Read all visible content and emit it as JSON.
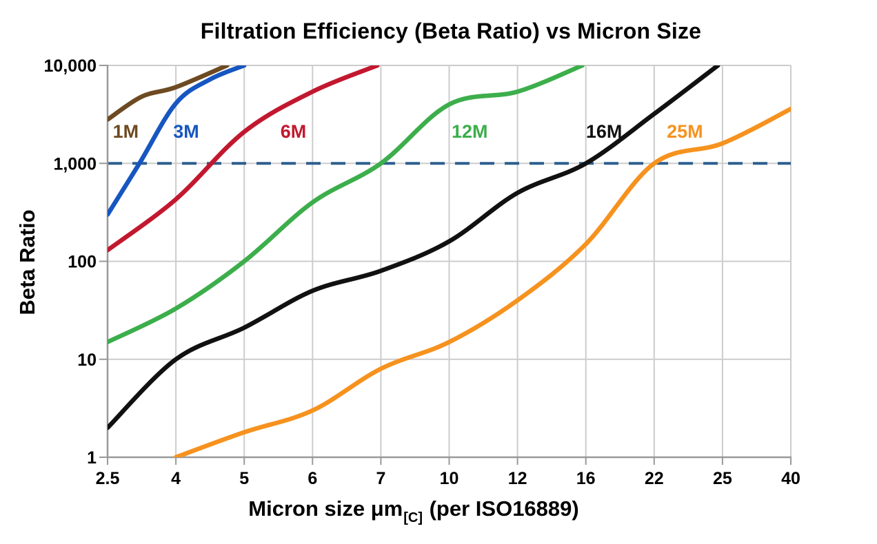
{
  "title": "Filtration Efficiency (Beta Ratio) vs Micron Size",
  "y_axis": {
    "title": "Beta Ratio",
    "tick_labels": [
      "10,000",
      "1,000",
      "100",
      "10",
      "1"
    ]
  },
  "x_axis": {
    "title_prefix": "Micron size μm",
    "title_subscript": "[C]",
    "title_suffix": " (per ISO16889)",
    "tick_labels": [
      "2.5",
      "4",
      "5",
      "6",
      "7",
      "10",
      "12",
      "16",
      "22",
      "25",
      "40"
    ]
  },
  "chart_data": {
    "type": "line",
    "title": "Filtration Efficiency (Beta Ratio) vs Micron Size",
    "xlabel": "Micron size μm[C] (per ISO16889)",
    "ylabel": "Beta Ratio",
    "x_scale": "categorical",
    "y_scale": "log",
    "x_ticks": [
      2.5,
      4,
      5,
      6,
      7,
      10,
      12,
      16,
      22,
      25,
      40
    ],
    "y_ticks": [
      1,
      10,
      100,
      1000,
      10000
    ],
    "ylim": [
      1,
      10000
    ],
    "grid": true,
    "legend_position": "inline-labels",
    "reference_line": {
      "value": 1000,
      "orientation": "horizontal",
      "style": "dashed",
      "color": "#2d5f8e"
    },
    "series": [
      {
        "name": "1M",
        "color": "#6d4a21",
        "label_pos": [
          2.9,
          2150
        ],
        "points": [
          [
            2.5,
            2800
          ],
          [
            3.25,
            4800
          ],
          [
            4,
            6000
          ],
          [
            4.75,
            10000
          ]
        ]
      },
      {
        "name": "3M",
        "color": "#1656c1",
        "label_pos": [
          4.15,
          2150
        ],
        "points": [
          [
            2.5,
            300
          ],
          [
            3.2,
            1000
          ],
          [
            4,
            4100
          ],
          [
            4.5,
            7200
          ],
          [
            5,
            10000
          ]
        ]
      },
      {
        "name": "6M",
        "color": "#c2182f",
        "label_pos": [
          5.72,
          2150
        ],
        "points": [
          [
            2.5,
            130
          ],
          [
            4,
            430
          ],
          [
            5,
            2100
          ],
          [
            6,
            5400
          ],
          [
            6.95,
            10000
          ]
        ]
      },
      {
        "name": "12M",
        "color": "#3cae4b",
        "label_pos": [
          10.6,
          2150
        ],
        "points": [
          [
            2.5,
            15
          ],
          [
            4,
            33
          ],
          [
            5,
            100
          ],
          [
            6,
            400
          ],
          [
            7,
            1000
          ],
          [
            10,
            4000
          ],
          [
            12,
            5400
          ],
          [
            15.8,
            10000
          ]
        ]
      },
      {
        "name": "16M",
        "color": "#111111",
        "label_pos": [
          17.6,
          2150
        ],
        "points": [
          [
            2.5,
            2
          ],
          [
            4,
            10
          ],
          [
            5,
            21
          ],
          [
            6,
            50
          ],
          [
            7,
            80
          ],
          [
            10,
            160
          ],
          [
            12,
            500
          ],
          [
            16,
            1000
          ],
          [
            22,
            3200
          ],
          [
            24.8,
            10000
          ]
        ]
      },
      {
        "name": "25M",
        "color": "#f6921e",
        "label_pos": [
          23.35,
          2150
        ],
        "points": [
          [
            4,
            1
          ],
          [
            5,
            1.8
          ],
          [
            6,
            3
          ],
          [
            7,
            8
          ],
          [
            10,
            15
          ],
          [
            12,
            40
          ],
          [
            16,
            150
          ],
          [
            22,
            1000
          ],
          [
            25,
            1600
          ],
          [
            40,
            3600
          ]
        ]
      }
    ]
  },
  "colors": {
    "background": "#ffffff",
    "grid": "#cccccc",
    "axis": "#999999",
    "text": "#000000",
    "reference_dash": "#2d5f8e"
  }
}
